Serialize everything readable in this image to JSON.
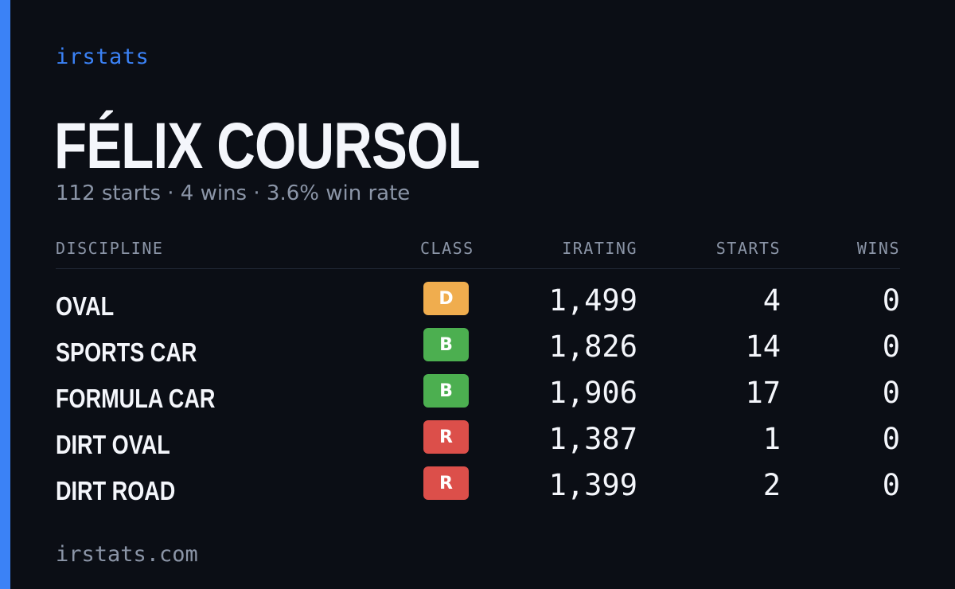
{
  "brand": "irstats",
  "driver": {
    "name": "FÉLIX COURSOL",
    "summary": "112 starts · 4 wins · 3.6% win rate"
  },
  "table": {
    "headers": {
      "discipline": "DISCIPLINE",
      "class": "CLASS",
      "irating": "IRATING",
      "starts": "STARTS",
      "wins": "WINS"
    },
    "rows": [
      {
        "discipline": "OVAL",
        "class": "D",
        "class_color": "#f0ad4e",
        "irating": "1,499",
        "starts": "4",
        "wins": "0"
      },
      {
        "discipline": "SPORTS CAR",
        "class": "B",
        "class_color": "#4caf50",
        "irating": "1,826",
        "starts": "14",
        "wins": "0"
      },
      {
        "discipline": "FORMULA CAR",
        "class": "B",
        "class_color": "#4caf50",
        "irating": "1,906",
        "starts": "17",
        "wins": "0"
      },
      {
        "discipline": "DIRT OVAL",
        "class": "R",
        "class_color": "#dc4f4a",
        "irating": "1,387",
        "starts": "1",
        "wins": "0"
      },
      {
        "discipline": "DIRT ROAD",
        "class": "R",
        "class_color": "#dc4f4a",
        "irating": "1,399",
        "starts": "2",
        "wins": "0"
      }
    ]
  },
  "footer": "irstats.com",
  "colors": {
    "accent": "#3b82f6",
    "background": "#0b0e15",
    "text": "#f4f6fb",
    "muted": "#8b95a7"
  }
}
